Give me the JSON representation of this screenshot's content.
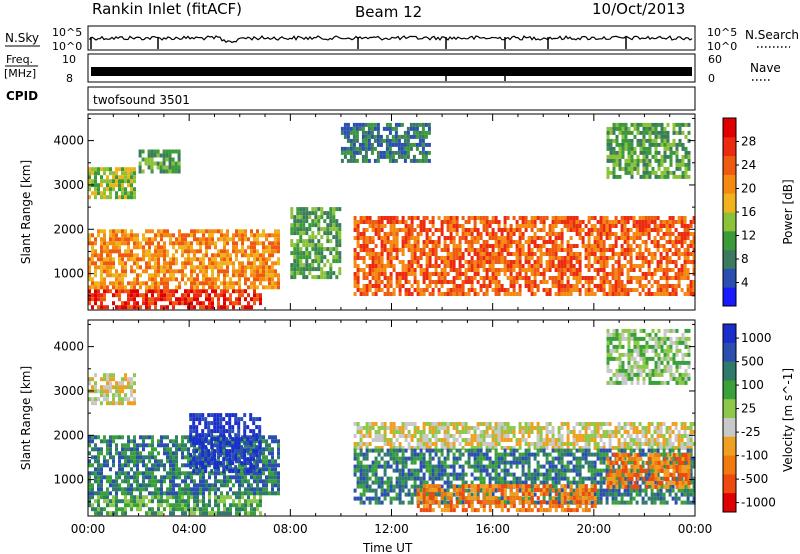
{
  "header": {
    "station": "Rankin Inlet (fitACF)",
    "beam": "Beam 12",
    "date": "10/Oct/2013"
  },
  "strips": {
    "nsky_label": "N.Sky",
    "nsky_ticks": [
      "10^5",
      "10^0"
    ],
    "nsearch_label": "N.Search",
    "nsearch_ticks": [
      "10^5",
      "10^0"
    ],
    "freq_label_1": "Freq.",
    "freq_label_2": "[MHz]",
    "freq_ticks": [
      "10",
      "8"
    ],
    "nave_label": "Nave",
    "nave_ticks": [
      "60",
      "0"
    ],
    "cpid_label": "CPID",
    "cpid_value": "twofsound 3501"
  },
  "chart_data": [
    {
      "type": "heatmap",
      "title": "Power",
      "ylabel": "Slant Range [km]",
      "xlabel": "Time UT",
      "x_ticks": [
        "00:00",
        "04:00",
        "08:00",
        "12:00",
        "16:00",
        "20:00",
        "00:00"
      ],
      "x_range_hours": [
        0,
        24
      ],
      "y_ticks": [
        1000,
        2000,
        3000,
        4000
      ],
      "y_range_km": [
        180,
        4600
      ],
      "colorbar": {
        "label": "Power [dB]",
        "tick_labels": [
          "4",
          "8",
          "12",
          "16",
          "20",
          "24",
          "28"
        ],
        "colors": [
          "#1a1aff",
          "#2a4fb0",
          "#3c7a5f",
          "#3a9a3a",
          "#8cc23a",
          "#f0b31e",
          "#f58a12",
          "#f05a10",
          "#ec2a10",
          "#e00000"
        ]
      },
      "echo_regions": [
        {
          "t": [
            0.0,
            6.8
          ],
          "r": [
            250,
            650
          ],
          "value_level": 8
        },
        {
          "t": [
            0.0,
            7.5
          ],
          "r": [
            700,
            2000
          ],
          "value_level": 6
        },
        {
          "t": [
            0.0,
            1.8
          ],
          "r": [
            2700,
            3400
          ],
          "value_level": 4
        },
        {
          "t": [
            2.0,
            3.6
          ],
          "r": [
            3300,
            3800
          ],
          "value_level": 3
        },
        {
          "t": [
            10.0,
            13.5
          ],
          "r": [
            3500,
            4400
          ],
          "value_level": 2
        },
        {
          "t": [
            10.5,
            24.0
          ],
          "r": [
            500,
            2300
          ],
          "value_level": 7
        },
        {
          "t": [
            20.5,
            23.8
          ],
          "r": [
            3200,
            4400
          ],
          "value_level": 3
        },
        {
          "t": [
            8.0,
            10.0
          ],
          "r": [
            900,
            2500
          ],
          "value_level": 3
        }
      ]
    },
    {
      "type": "heatmap",
      "title": "Velocity",
      "ylabel": "Slant Range [km]",
      "xlabel": "Time UT",
      "x_ticks": [
        "00:00",
        "04:00",
        "08:00",
        "12:00",
        "16:00",
        "20:00",
        "00:00"
      ],
      "x_range_hours": [
        0,
        24
      ],
      "y_ticks": [
        1000,
        2000,
        3000,
        4000
      ],
      "y_range_km": [
        180,
        4600
      ],
      "colorbar": {
        "label": "Velocity [m s^-1]",
        "tick_labels": [
          "1000",
          "500",
          "100",
          "25",
          "-25",
          "-100",
          "-500",
          "-1000"
        ],
        "colors": [
          "#1a2ecc",
          "#2a4fb0",
          "#2f7a6a",
          "#3aa03a",
          "#8dc84a",
          "#c8c8c8",
          "#f0a020",
          "#f07a10",
          "#ee4a10",
          "#e00000"
        ]
      },
      "echo_regions": [
        {
          "t": [
            0.0,
            6.8
          ],
          "r": [
            250,
            650
          ],
          "value_level": 3
        },
        {
          "t": [
            0.0,
            7.5
          ],
          "r": [
            700,
            2000
          ],
          "value_level": 2
        },
        {
          "t": [
            0.0,
            1.8
          ],
          "r": [
            2700,
            3400
          ],
          "value_level": 5
        },
        {
          "t": [
            4.0,
            6.8
          ],
          "r": [
            1200,
            2500
          ],
          "value_level": 0
        },
        {
          "t": [
            10.5,
            24.0
          ],
          "r": [
            1700,
            2300
          ],
          "value_level": 5
        },
        {
          "t": [
            10.5,
            24.0
          ],
          "r": [
            500,
            1700
          ],
          "value_level": 2
        },
        {
          "t": [
            13.0,
            20.0
          ],
          "r": [
            300,
            900
          ],
          "value_level": 7
        },
        {
          "t": [
            20.5,
            23.8
          ],
          "r": [
            800,
            1600
          ],
          "value_level": 7
        },
        {
          "t": [
            20.5,
            23.8
          ],
          "r": [
            3200,
            4400
          ],
          "value_level": 4
        }
      ]
    }
  ]
}
